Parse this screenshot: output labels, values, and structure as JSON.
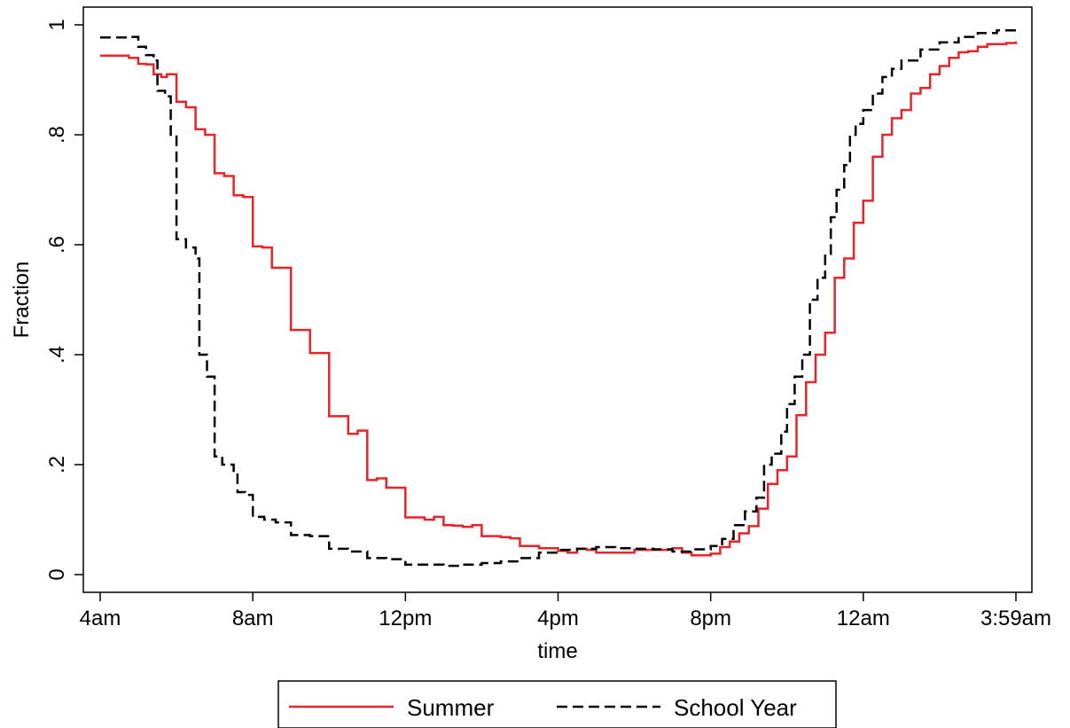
{
  "chart_data": {
    "type": "line",
    "xlabel": "time",
    "ylabel": "Fraction",
    "x_unit": "hours after 4am",
    "xlim": [
      0,
      24
    ],
    "ylim": [
      0,
      1
    ],
    "grid": false,
    "legend_placement": "bottom-center",
    "x_ticks": [
      {
        "value": 0,
        "label": "4am"
      },
      {
        "value": 4,
        "label": "8am"
      },
      {
        "value": 8,
        "label": "12pm"
      },
      {
        "value": 12,
        "label": "4pm"
      },
      {
        "value": 16,
        "label": "8pm"
      },
      {
        "value": 20,
        "label": "12am"
      },
      {
        "value": 24,
        "label": "3:59am"
      }
    ],
    "y_ticks": [
      {
        "value": 0,
        "label": "0"
      },
      {
        "value": 0.2,
        "label": ".2"
      },
      {
        "value": 0.4,
        "label": ".4"
      },
      {
        "value": 0.6,
        "label": ".6"
      },
      {
        "value": 0.8,
        "label": ".8"
      },
      {
        "value": 1,
        "label": "1"
      }
    ],
    "series": [
      {
        "name": "Summer",
        "color": "#e8232a",
        "dash": "solid",
        "points": [
          [
            0,
            0.944
          ],
          [
            0.3,
            0.944
          ],
          [
            0.6,
            0.944
          ],
          [
            0.75,
            0.94
          ],
          [
            0.9,
            0.94
          ],
          [
            1.0,
            0.929
          ],
          [
            1.2,
            0.928
          ],
          [
            1.4,
            0.91
          ],
          [
            1.6,
            0.905
          ],
          [
            1.75,
            0.91
          ],
          [
            2.0,
            0.86
          ],
          [
            2.25,
            0.85
          ],
          [
            2.5,
            0.81
          ],
          [
            2.75,
            0.8
          ],
          [
            3.0,
            0.73
          ],
          [
            3.25,
            0.725
          ],
          [
            3.5,
            0.69
          ],
          [
            3.75,
            0.687
          ],
          [
            4.0,
            0.597
          ],
          [
            4.25,
            0.595
          ],
          [
            4.5,
            0.558
          ],
          [
            4.75,
            0.558
          ],
          [
            5.0,
            0.445
          ],
          [
            5.25,
            0.445
          ],
          [
            5.5,
            0.403
          ],
          [
            5.75,
            0.403
          ],
          [
            6.0,
            0.288
          ],
          [
            6.25,
            0.288
          ],
          [
            6.5,
            0.256
          ],
          [
            6.75,
            0.262
          ],
          [
            7.0,
            0.172
          ],
          [
            7.25,
            0.175
          ],
          [
            7.5,
            0.158
          ],
          [
            7.75,
            0.158
          ],
          [
            8.0,
            0.104
          ],
          [
            8.25,
            0.104
          ],
          [
            8.5,
            0.1
          ],
          [
            8.75,
            0.105
          ],
          [
            9.0,
            0.09
          ],
          [
            9.25,
            0.089
          ],
          [
            9.5,
            0.087
          ],
          [
            9.75,
            0.09
          ],
          [
            10.0,
            0.07
          ],
          [
            10.25,
            0.07
          ],
          [
            10.5,
            0.068
          ],
          [
            10.75,
            0.066
          ],
          [
            11.0,
            0.052
          ],
          [
            11.5,
            0.048
          ],
          [
            12.0,
            0.043
          ],
          [
            12.25,
            0.04
          ],
          [
            12.5,
            0.047
          ],
          [
            12.75,
            0.045
          ],
          [
            13.0,
            0.04
          ],
          [
            13.5,
            0.04
          ],
          [
            14.0,
            0.045
          ],
          [
            14.5,
            0.045
          ],
          [
            15.0,
            0.048
          ],
          [
            15.25,
            0.04
          ],
          [
            15.5,
            0.035
          ],
          [
            16.0,
            0.038
          ],
          [
            16.25,
            0.05
          ],
          [
            16.5,
            0.06
          ],
          [
            16.75,
            0.075
          ],
          [
            17.0,
            0.088
          ],
          [
            17.25,
            0.12
          ],
          [
            17.5,
            0.165
          ],
          [
            17.75,
            0.19
          ],
          [
            18.0,
            0.215
          ],
          [
            18.25,
            0.29
          ],
          [
            18.5,
            0.35
          ],
          [
            18.75,
            0.4
          ],
          [
            19.0,
            0.44
          ],
          [
            19.25,
            0.54
          ],
          [
            19.5,
            0.575
          ],
          [
            19.75,
            0.64
          ],
          [
            20.0,
            0.68
          ],
          [
            20.25,
            0.76
          ],
          [
            20.5,
            0.8
          ],
          [
            20.75,
            0.83
          ],
          [
            21.0,
            0.845
          ],
          [
            21.25,
            0.875
          ],
          [
            21.5,
            0.885
          ],
          [
            21.75,
            0.91
          ],
          [
            22.0,
            0.925
          ],
          [
            22.25,
            0.94
          ],
          [
            22.5,
            0.95
          ],
          [
            22.75,
            0.952
          ],
          [
            23.0,
            0.96
          ],
          [
            23.25,
            0.965
          ],
          [
            23.5,
            0.965
          ],
          [
            23.75,
            0.967
          ],
          [
            24.0,
            0.97
          ]
        ]
      },
      {
        "name": "School Year",
        "color": "#000000",
        "dash": "dashed",
        "points": [
          [
            0,
            0.977
          ],
          [
            0.4,
            0.977
          ],
          [
            0.8,
            0.978
          ],
          [
            1.0,
            0.96
          ],
          [
            1.2,
            0.945
          ],
          [
            1.4,
            0.935
          ],
          [
            1.5,
            0.88
          ],
          [
            1.7,
            0.87
          ],
          [
            1.85,
            0.8
          ],
          [
            2.0,
            0.61
          ],
          [
            2.25,
            0.595
          ],
          [
            2.5,
            0.575
          ],
          [
            2.6,
            0.4
          ],
          [
            2.8,
            0.36
          ],
          [
            3.0,
            0.215
          ],
          [
            3.2,
            0.2
          ],
          [
            3.5,
            0.185
          ],
          [
            3.6,
            0.15
          ],
          [
            3.8,
            0.145
          ],
          [
            4.0,
            0.105
          ],
          [
            4.3,
            0.1
          ],
          [
            4.6,
            0.095
          ],
          [
            5.0,
            0.072
          ],
          [
            5.5,
            0.07
          ],
          [
            6.0,
            0.047
          ],
          [
            6.5,
            0.042
          ],
          [
            7.0,
            0.03
          ],
          [
            7.5,
            0.028
          ],
          [
            8.0,
            0.018
          ],
          [
            9.0,
            0.016
          ],
          [
            9.5,
            0.018
          ],
          [
            10.0,
            0.021
          ],
          [
            10.5,
            0.024
          ],
          [
            11.0,
            0.03
          ],
          [
            11.5,
            0.04
          ],
          [
            12.0,
            0.045
          ],
          [
            12.5,
            0.047
          ],
          [
            13.0,
            0.05
          ],
          [
            13.5,
            0.048
          ],
          [
            14.0,
            0.047
          ],
          [
            14.5,
            0.046
          ],
          [
            15.0,
            0.042
          ],
          [
            15.5,
            0.046
          ],
          [
            16.0,
            0.052
          ],
          [
            16.3,
            0.065
          ],
          [
            16.6,
            0.09
          ],
          [
            16.9,
            0.115
          ],
          [
            17.2,
            0.14
          ],
          [
            17.4,
            0.2
          ],
          [
            17.6,
            0.22
          ],
          [
            17.85,
            0.26
          ],
          [
            18.0,
            0.31
          ],
          [
            18.2,
            0.36
          ],
          [
            18.4,
            0.4
          ],
          [
            18.6,
            0.5
          ],
          [
            18.8,
            0.54
          ],
          [
            19.0,
            0.58
          ],
          [
            19.15,
            0.65
          ],
          [
            19.3,
            0.7
          ],
          [
            19.5,
            0.745
          ],
          [
            19.65,
            0.8
          ],
          [
            19.8,
            0.82
          ],
          [
            20.0,
            0.845
          ],
          [
            20.25,
            0.875
          ],
          [
            20.5,
            0.905
          ],
          [
            20.75,
            0.92
          ],
          [
            21.0,
            0.935
          ],
          [
            21.5,
            0.955
          ],
          [
            22.0,
            0.968
          ],
          [
            22.5,
            0.978
          ],
          [
            23.0,
            0.985
          ],
          [
            23.5,
            0.99
          ],
          [
            24.0,
            0.995
          ]
        ]
      }
    ]
  }
}
